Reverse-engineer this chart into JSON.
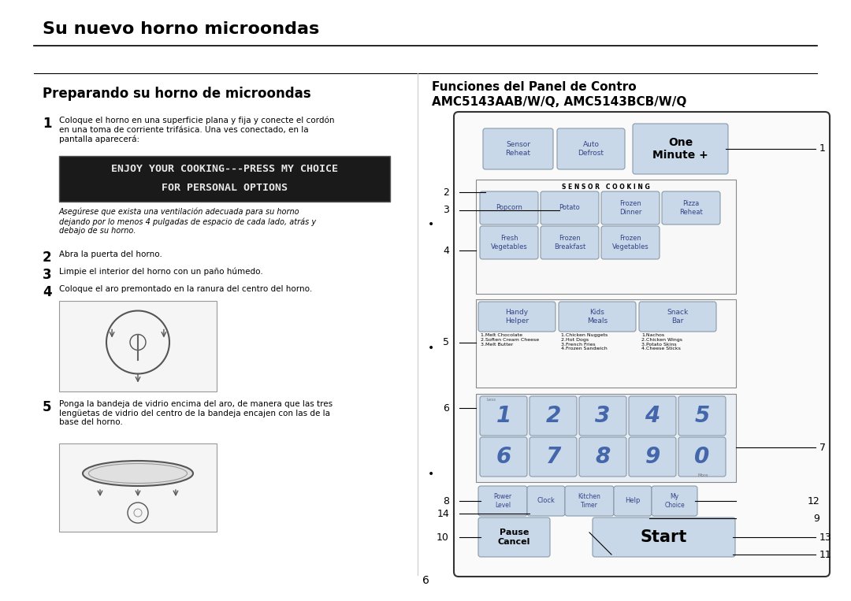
{
  "page_bg": "#ffffff",
  "title": "Su nuevo horno microondas",
  "left_heading": "Preparando su horno de microondas",
  "right_heading_line1": "Funciones del Panel de Contro",
  "right_heading_line2": "AMC5143AAB/W/Q, AMC5143BCB/W/Q",
  "step1_text": "Coloque el horno en una superficie plana y fija y conecte el cordón\nen una toma de corriente trifásica. Una ves conectado, en la\npantalla aparecerá:",
  "display_line1": "ENJOY YOUR COOKING---PRESS MY CHOICE",
  "display_line2": "FOR PERSONAL OPTIONS",
  "italic_text": "Asegúrese que exista una ventilación adecuada para su horno\ndejando por lo menos 4 pulgadas de espacio de cada lado, atrás y\ndebajo de su horno.",
  "step2_text": "Abra la puerta del horno.",
  "step3_text": "Limpie el interior del horno con un paño húmedo.",
  "step4_text": "Coloque el aro premontado en la ranura del centro del horno.",
  "step5_text": "Ponga la bandeja de vidrio encima del aro, de manera que las tres\nlengüetas de vidrio del centro de la bandeja encajen con las de la\nbase del horno.",
  "page_number": "6",
  "btn_color": "#c8d8e8",
  "btn_border": "#8899aa",
  "panel_border": "#333333",
  "display_bg": "#1a1a1a",
  "display_text": "#e8e8e8",
  "number_color": "#4466aa"
}
